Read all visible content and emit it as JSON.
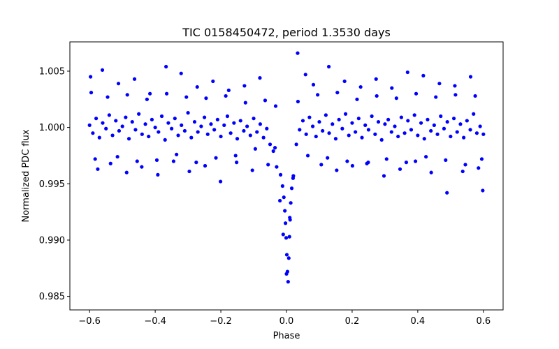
{
  "chart_data": {
    "type": "scatter",
    "title": "TIC 0158450472, period 1.3530 days",
    "xlabel": "Phase",
    "ylabel": "Normalized PDC flux",
    "xlim": [
      -0.66,
      0.66
    ],
    "ylim": [
      0.9838,
      1.0076
    ],
    "xticks": [
      -0.6,
      -0.4,
      -0.2,
      0.0,
      0.2,
      0.4,
      0.6
    ],
    "xtick_labels": [
      "−0.6",
      "−0.4",
      "−0.2",
      "0.0",
      "0.2",
      "0.4",
      "0.6"
    ],
    "yticks": [
      0.985,
      0.99,
      0.995,
      1.0,
      1.005
    ],
    "ytick_labels": [
      "0.985",
      "0.990",
      "0.995",
      "1.000",
      "1.005"
    ],
    "grid": false,
    "marker_color": "#0000ff",
    "series": [
      {
        "x": [
          -0.6,
          -0.59,
          -0.58,
          -0.57,
          -0.56,
          -0.55,
          -0.54,
          -0.53,
          -0.52,
          -0.51,
          -0.5,
          -0.49,
          -0.48,
          -0.47,
          -0.46,
          -0.45,
          -0.44,
          -0.43,
          -0.42,
          -0.41,
          -0.4,
          -0.39,
          -0.38,
          -0.37,
          -0.36,
          -0.35,
          -0.34,
          -0.33,
          -0.32,
          -0.31,
          -0.3,
          -0.29,
          -0.28,
          -0.27,
          -0.26,
          -0.25,
          -0.24,
          -0.23,
          -0.22,
          -0.21,
          -0.2,
          -0.19,
          -0.18,
          -0.17,
          -0.16,
          -0.15,
          -0.14,
          -0.13,
          -0.12,
          -0.11,
          -0.1,
          -0.09,
          -0.08,
          -0.07,
          -0.06,
          -0.05,
          -0.04,
          -0.03,
          -0.02,
          -0.01,
          0.0,
          0.01,
          0.02,
          0.03,
          0.04,
          0.05,
          0.06,
          0.07,
          0.08,
          0.09,
          0.1,
          0.11,
          0.12,
          0.13,
          0.14,
          0.15,
          0.16,
          0.17,
          0.18,
          0.19,
          0.2,
          0.21,
          0.22,
          0.23,
          0.24,
          0.25,
          0.26,
          0.27,
          0.28,
          0.29,
          0.3,
          0.31,
          0.32,
          0.33,
          0.34,
          0.35,
          0.36,
          0.37,
          0.38,
          0.39,
          0.4,
          0.41,
          0.42,
          0.43,
          0.44,
          0.45,
          0.46,
          0.47,
          0.48,
          0.49,
          0.5,
          0.51,
          0.52,
          0.53,
          0.54,
          0.55,
          0.56,
          0.57,
          0.58,
          0.59,
          0.6,
          -0.597,
          -0.583,
          -0.561,
          -0.536,
          -0.512,
          -0.487,
          -0.463,
          -0.441,
          -0.416,
          -0.392,
          -0.367,
          -0.344,
          -0.321,
          -0.296,
          -0.272,
          -0.248,
          -0.224,
          -0.201,
          -0.176,
          -0.152,
          -0.128,
          -0.104,
          -0.081,
          -0.056,
          -0.033,
          -0.018,
          -0.012,
          -0.008,
          -0.005,
          -0.003,
          -0.001,
          0.001,
          0.003,
          0.005,
          0.007,
          0.009,
          0.011,
          0.013,
          0.016,
          0.021,
          0.034,
          0.058,
          0.082,
          0.106,
          0.129,
          0.153,
          0.177,
          0.201,
          0.226,
          0.249,
          0.273,
          0.297,
          0.321,
          0.346,
          0.369,
          0.393,
          0.417,
          0.441,
          0.466,
          0.489,
          0.513,
          0.537,
          0.561,
          0.585,
          0.598,
          -0.595,
          -0.575,
          -0.545,
          -0.515,
          -0.485,
          -0.455,
          -0.425,
          -0.395,
          -0.365,
          -0.335,
          -0.305,
          -0.275,
          -0.245,
          -0.215,
          -0.185,
          -0.155,
          -0.125,
          -0.095,
          -0.065,
          -0.035,
          0.035,
          0.065,
          0.095,
          0.125,
          0.155,
          0.185,
          0.215,
          0.245,
          0.275,
          0.305,
          0.335,
          0.365,
          0.395,
          0.425,
          0.455,
          0.485,
          0.515,
          0.545,
          0.575,
          0.595
        ],
        "y": [
          1.0002,
          0.9995,
          1.0008,
          0.9991,
          1.0004,
          0.9999,
          1.0011,
          0.9993,
          1.0006,
          0.9997,
          1.0001,
          1.0009,
          0.999,
          1.0005,
          0.9998,
          1.0012,
          0.9994,
          1.0003,
          0.9992,
          1.0007,
          1.0,
          0.9996,
          1.001,
          0.9989,
          1.0004,
          0.9999,
          1.0008,
          0.9993,
          1.0002,
          0.9997,
          1.0013,
          0.9991,
          1.0005,
          0.9996,
          1.0001,
          1.0009,
          0.9994,
          1.0003,
          0.9998,
          1.0007,
          0.9992,
          1.0002,
          1.001,
          0.9995,
          1.0004,
          0.999,
          1.0006,
          0.9997,
          1.0001,
          0.9993,
          1.0008,
          0.9996,
          1.0003,
          0.9991,
          0.9999,
          0.9985,
          0.9979,
          0.9965,
          0.9935,
          0.9905,
          0.987,
          0.992,
          0.9955,
          0.9985,
          0.9998,
          1.0006,
          0.9994,
          1.0009,
          1.0001,
          0.9992,
          1.0005,
          0.9997,
          1.0011,
          0.9995,
          1.0003,
          0.999,
          1.0007,
          0.9999,
          1.0012,
          0.9993,
          1.0004,
          0.9996,
          1.0008,
          0.9991,
          1.0002,
          0.9998,
          1.001,
          0.9994,
          1.0005,
          0.9989,
          1.0003,
          1.0007,
          0.9996,
          1.0001,
          0.9992,
          1.0009,
          0.9995,
          1.0006,
          0.9998,
          1.0011,
          0.9993,
          1.0004,
          0.999,
          1.0007,
          0.9997,
          1.0002,
          0.9994,
          1.001,
          0.9999,
          1.0005,
          0.9992,
          1.0008,
          0.9996,
          1.0003,
          0.9991,
          1.0006,
          0.9998,
          1.0012,
          0.9995,
          1.0001,
          0.9994,
          1.0045,
          0.9972,
          1.0051,
          0.9968,
          1.0039,
          0.996,
          1.0043,
          0.9965,
          1.003,
          0.9958,
          1.0054,
          0.997,
          1.0048,
          0.9961,
          1.0036,
          0.9966,
          1.0041,
          0.9952,
          1.0033,
          0.9969,
          1.0037,
          0.9962,
          1.0044,
          0.9967,
          1.0019,
          0.9958,
          0.9948,
          0.9938,
          0.9926,
          0.9915,
          0.9902,
          0.9887,
          0.9872,
          0.9863,
          0.9884,
          0.9903,
          0.9918,
          0.9933,
          0.9946,
          0.9957,
          1.0066,
          1.0047,
          1.0038,
          0.9967,
          1.0054,
          0.9962,
          1.0041,
          0.9966,
          1.0036,
          0.9969,
          1.0043,
          0.9957,
          1.0035,
          0.9963,
          1.0049,
          0.997,
          1.0046,
          0.996,
          1.0039,
          0.9942,
          1.0037,
          0.9961,
          1.0045,
          0.9964,
          0.9944,
          1.0031,
          0.9963,
          1.0027,
          0.9974,
          1.0029,
          0.997,
          1.0025,
          0.9971,
          1.003,
          0.9976,
          1.0027,
          0.9969,
          1.0026,
          0.9973,
          1.0028,
          0.9975,
          1.0022,
          0.9981,
          1.0024,
          0.9982,
          1.0023,
          0.9975,
          1.0029,
          0.9973,
          1.0031,
          0.997,
          1.0025,
          0.9968,
          1.0028,
          0.9972,
          1.0026,
          0.9969,
          1.003,
          0.9974,
          1.0027,
          0.9971,
          1.0029,
          0.9967,
          1.0028,
          0.9972
        ]
      }
    ]
  }
}
